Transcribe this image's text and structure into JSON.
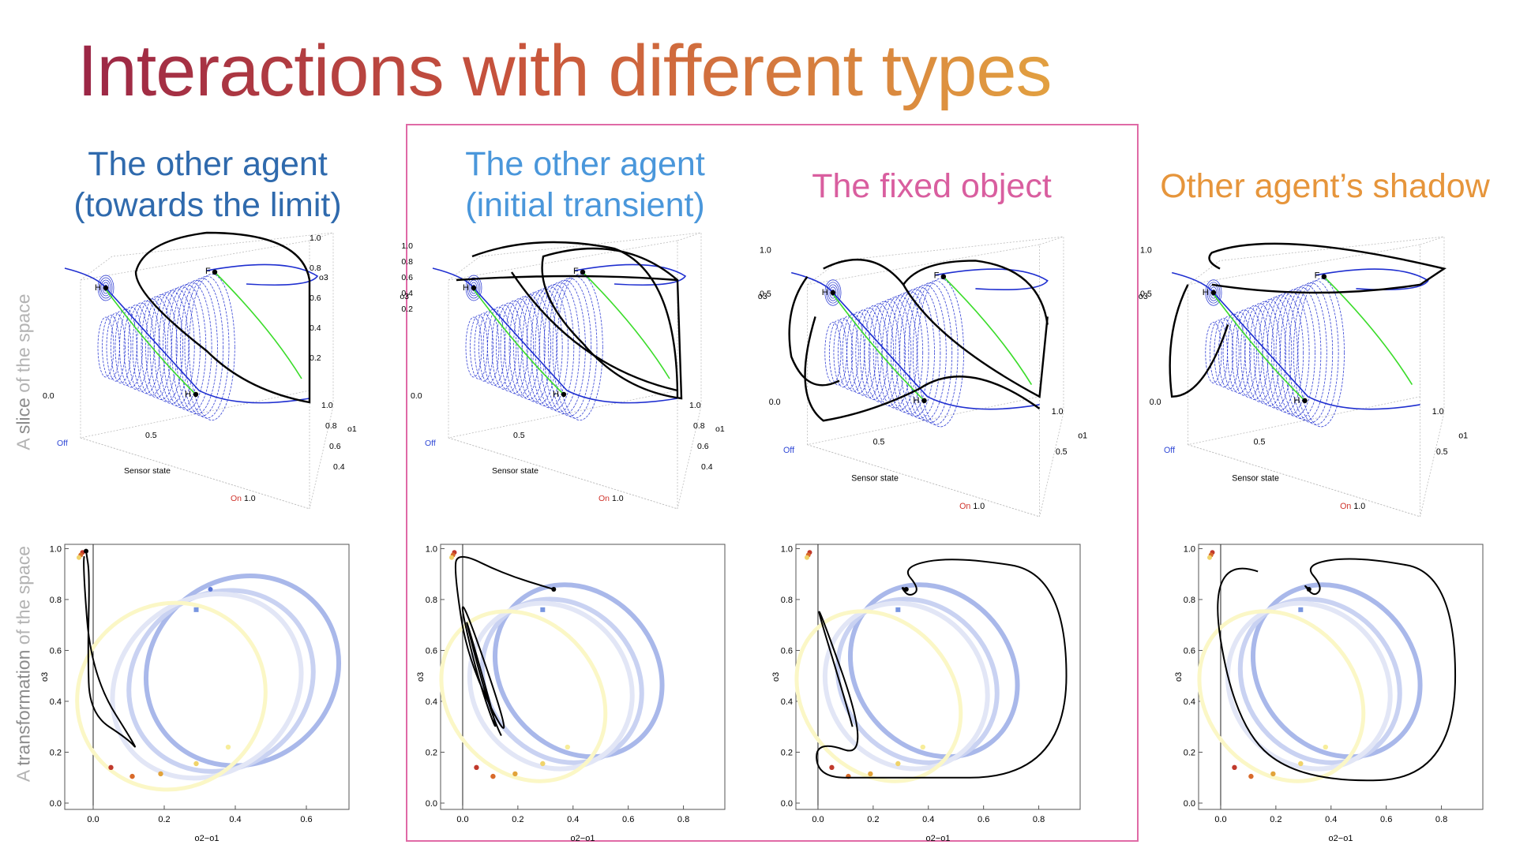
{
  "slide": {
    "title": "Interactions with different types",
    "title_colors": [
      "#9b2646",
      "#c8543c",
      "#e2a040"
    ]
  },
  "columns": [
    {
      "id": "limit",
      "line1": "The other agent",
      "line2": "(towards the limit)",
      "color": "#2f6aad"
    },
    {
      "id": "transient",
      "line1": "The other agent",
      "line2": "(initial transient)",
      "color": "#4a97db"
    },
    {
      "id": "fixed",
      "line1": "The fixed object",
      "line2": "",
      "color": "#d95e9f"
    },
    {
      "id": "shadow",
      "line1": "Other agent’s shadow",
      "line2": "",
      "color": "#e6953b"
    }
  ],
  "highlight_frame_color": "#e06aa6",
  "row_labels": [
    {
      "pre": "A ",
      "key": "slice",
      "post": " of the space"
    },
    {
      "pre": "A ",
      "key": "transformation",
      "post": " of the space"
    }
  ],
  "plot3d": {
    "sensor_label": "Sensor state",
    "o1_label": "o1",
    "o3_label": "o3",
    "off_label": "Off",
    "on_label": "On",
    "point_H": "H",
    "point_F": "F",
    "ticks_sensor": [
      "0.0",
      "0.5",
      "1.0"
    ],
    "ticks_o1": [
      "1.0",
      "0.8",
      "0.6",
      "0.4"
    ],
    "ticks_o1_alt": [
      "1.0",
      "0.5"
    ],
    "ticks_o3": [
      "1.0",
      "0.8",
      "0.6",
      "0.4",
      "0.2"
    ],
    "ticks_o3_alt": [
      "1.0",
      "0.5"
    ],
    "colors": {
      "blue": "#1f2fd0",
      "green": "#3bdc2a",
      "off": "#2f47d6",
      "on": "#d0342c"
    }
  },
  "plot2d": {
    "xlabel": "o2−o1",
    "ylabel": "o3",
    "ylim": [
      0.0,
      1.0
    ],
    "y_ticks": [
      "0.0",
      "0.2",
      "0.4",
      "0.6",
      "0.8",
      "1.0"
    ],
    "x_ticks_short": [
      "0.0",
      "0.2",
      "0.4",
      "0.6"
    ],
    "x_ticks_long": [
      "0.0",
      "0.2",
      "0.4",
      "0.6",
      "0.8"
    ],
    "loop_colors": [
      "#a9b8ea",
      "#c9d2f2",
      "#e2e6f6",
      "#fbf7c6"
    ],
    "dot_colors": [
      "#c0392b",
      "#d86a2a",
      "#e2a33a",
      "#f0d36a",
      "#f7ed9a"
    ],
    "center_square_color": "#7896e0"
  }
}
